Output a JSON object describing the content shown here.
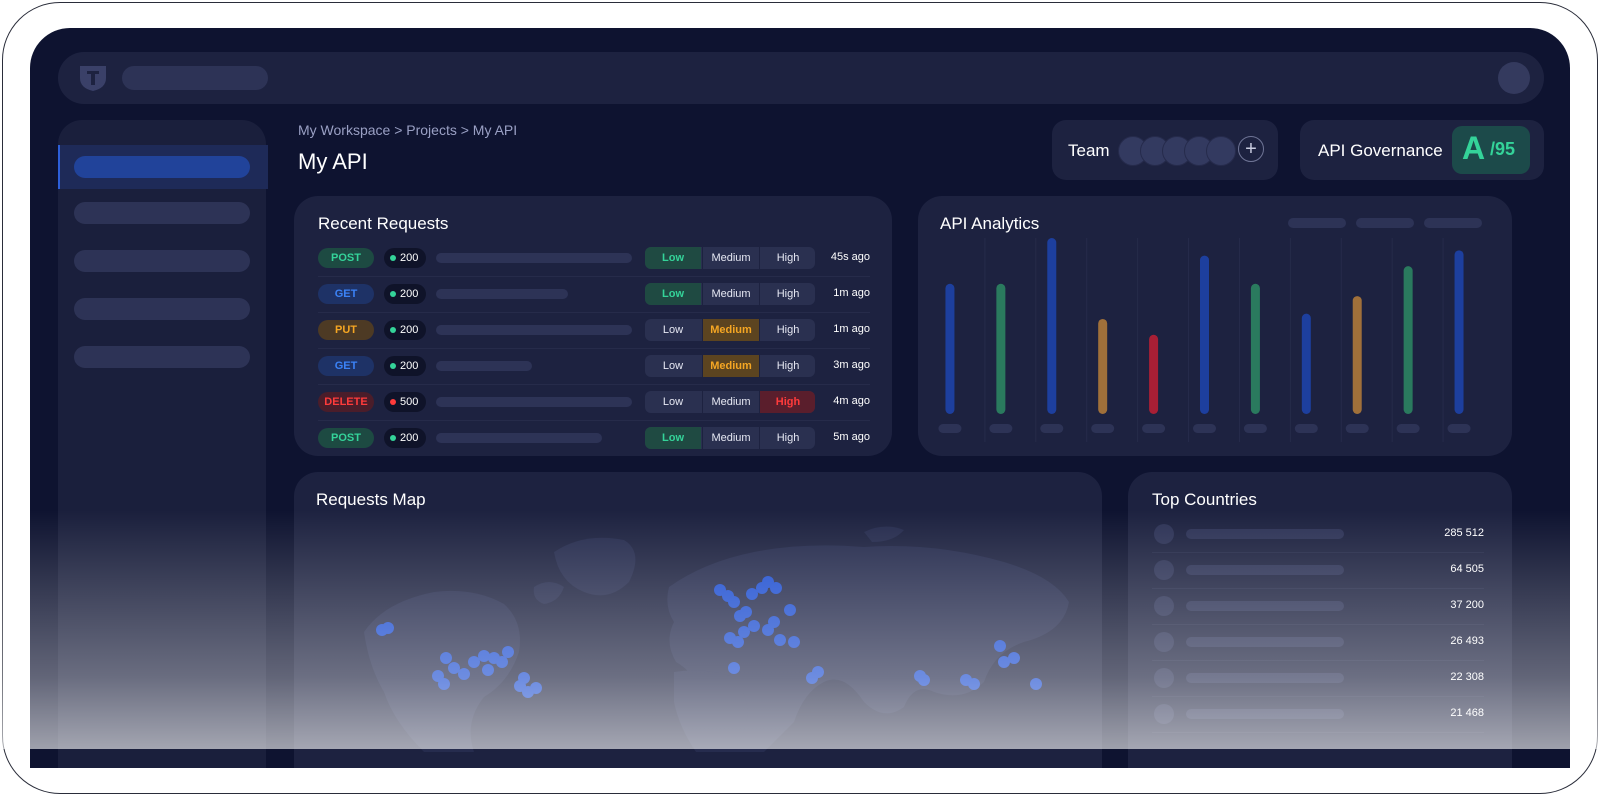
{
  "breadcrumb": [
    "My Workspace",
    ">",
    "Projects",
    ">",
    "My API"
  ],
  "breadcrumb_text": "My Workspace > Projects > My API",
  "page_title": "My API",
  "team": {
    "label": "Team",
    "add_icon": "plus-icon",
    "add_label": "+"
  },
  "governance": {
    "label": "API Governance",
    "grade": "A",
    "score": "/95",
    "grade_color": "#34d399"
  },
  "recent_requests": {
    "title": "Recent Requests",
    "severity_labels": [
      "Low",
      "Medium",
      "High"
    ],
    "rows": [
      {
        "method": "POST",
        "status": "200",
        "severity": "Low",
        "time": "45s ago"
      },
      {
        "method": "GET",
        "status": "200",
        "severity": "Low",
        "time": "1m ago"
      },
      {
        "method": "PUT",
        "status": "200",
        "severity": "Medium",
        "time": "1m ago"
      },
      {
        "method": "GET",
        "status": "200",
        "severity": "Medium",
        "time": "3m ago"
      },
      {
        "method": "DELETE",
        "status": "500",
        "severity": "High",
        "time": "4m ago"
      },
      {
        "method": "POST",
        "status": "200",
        "severity": "Low",
        "time": "5m ago"
      }
    ],
    "method_colors": {
      "POST": {
        "bg": "#1d4a42",
        "fg": "#34d399"
      },
      "GET": {
        "bg": "#1e3266",
        "fg": "#3b82f6"
      },
      "PUT": {
        "bg": "#4d3a24",
        "fg": "#f5a623"
      },
      "DELETE": {
        "bg": "#4a1d2a",
        "fg": "#ff3b3b"
      }
    },
    "status_colors": {
      "200": "#34d399",
      "500": "#ff3b3b"
    }
  },
  "analytics": {
    "title": "API Analytics",
    "chart_data": {
      "type": "bar",
      "values": [
        0.74,
        0.74,
        1.0,
        0.54,
        0.45,
        0.9,
        0.74,
        0.57,
        0.67,
        0.84,
        0.93
      ],
      "colors": [
        "#1d3f9e",
        "#2a7a5e",
        "#1d3f9e",
        "#a0703a",
        "#a81f35",
        "#1d3f9e",
        "#2a7a5e",
        "#1d3f9e",
        "#a0703a",
        "#2a7a5e",
        "#1d3f9e"
      ],
      "ylim": [
        0,
        1
      ]
    }
  },
  "requests_map": {
    "title": "Requests Map",
    "marker_color": "#1f4fd0"
  },
  "top_countries": {
    "title": "Top Countries",
    "rows": [
      {
        "value": "285 512"
      },
      {
        "value": "64 505"
      },
      {
        "value": "37 200"
      },
      {
        "value": "26 493"
      },
      {
        "value": "22 308"
      },
      {
        "value": "21 468"
      }
    ]
  },
  "icons": {
    "logo": "shield-logo-icon",
    "avatar": "user-avatar"
  }
}
